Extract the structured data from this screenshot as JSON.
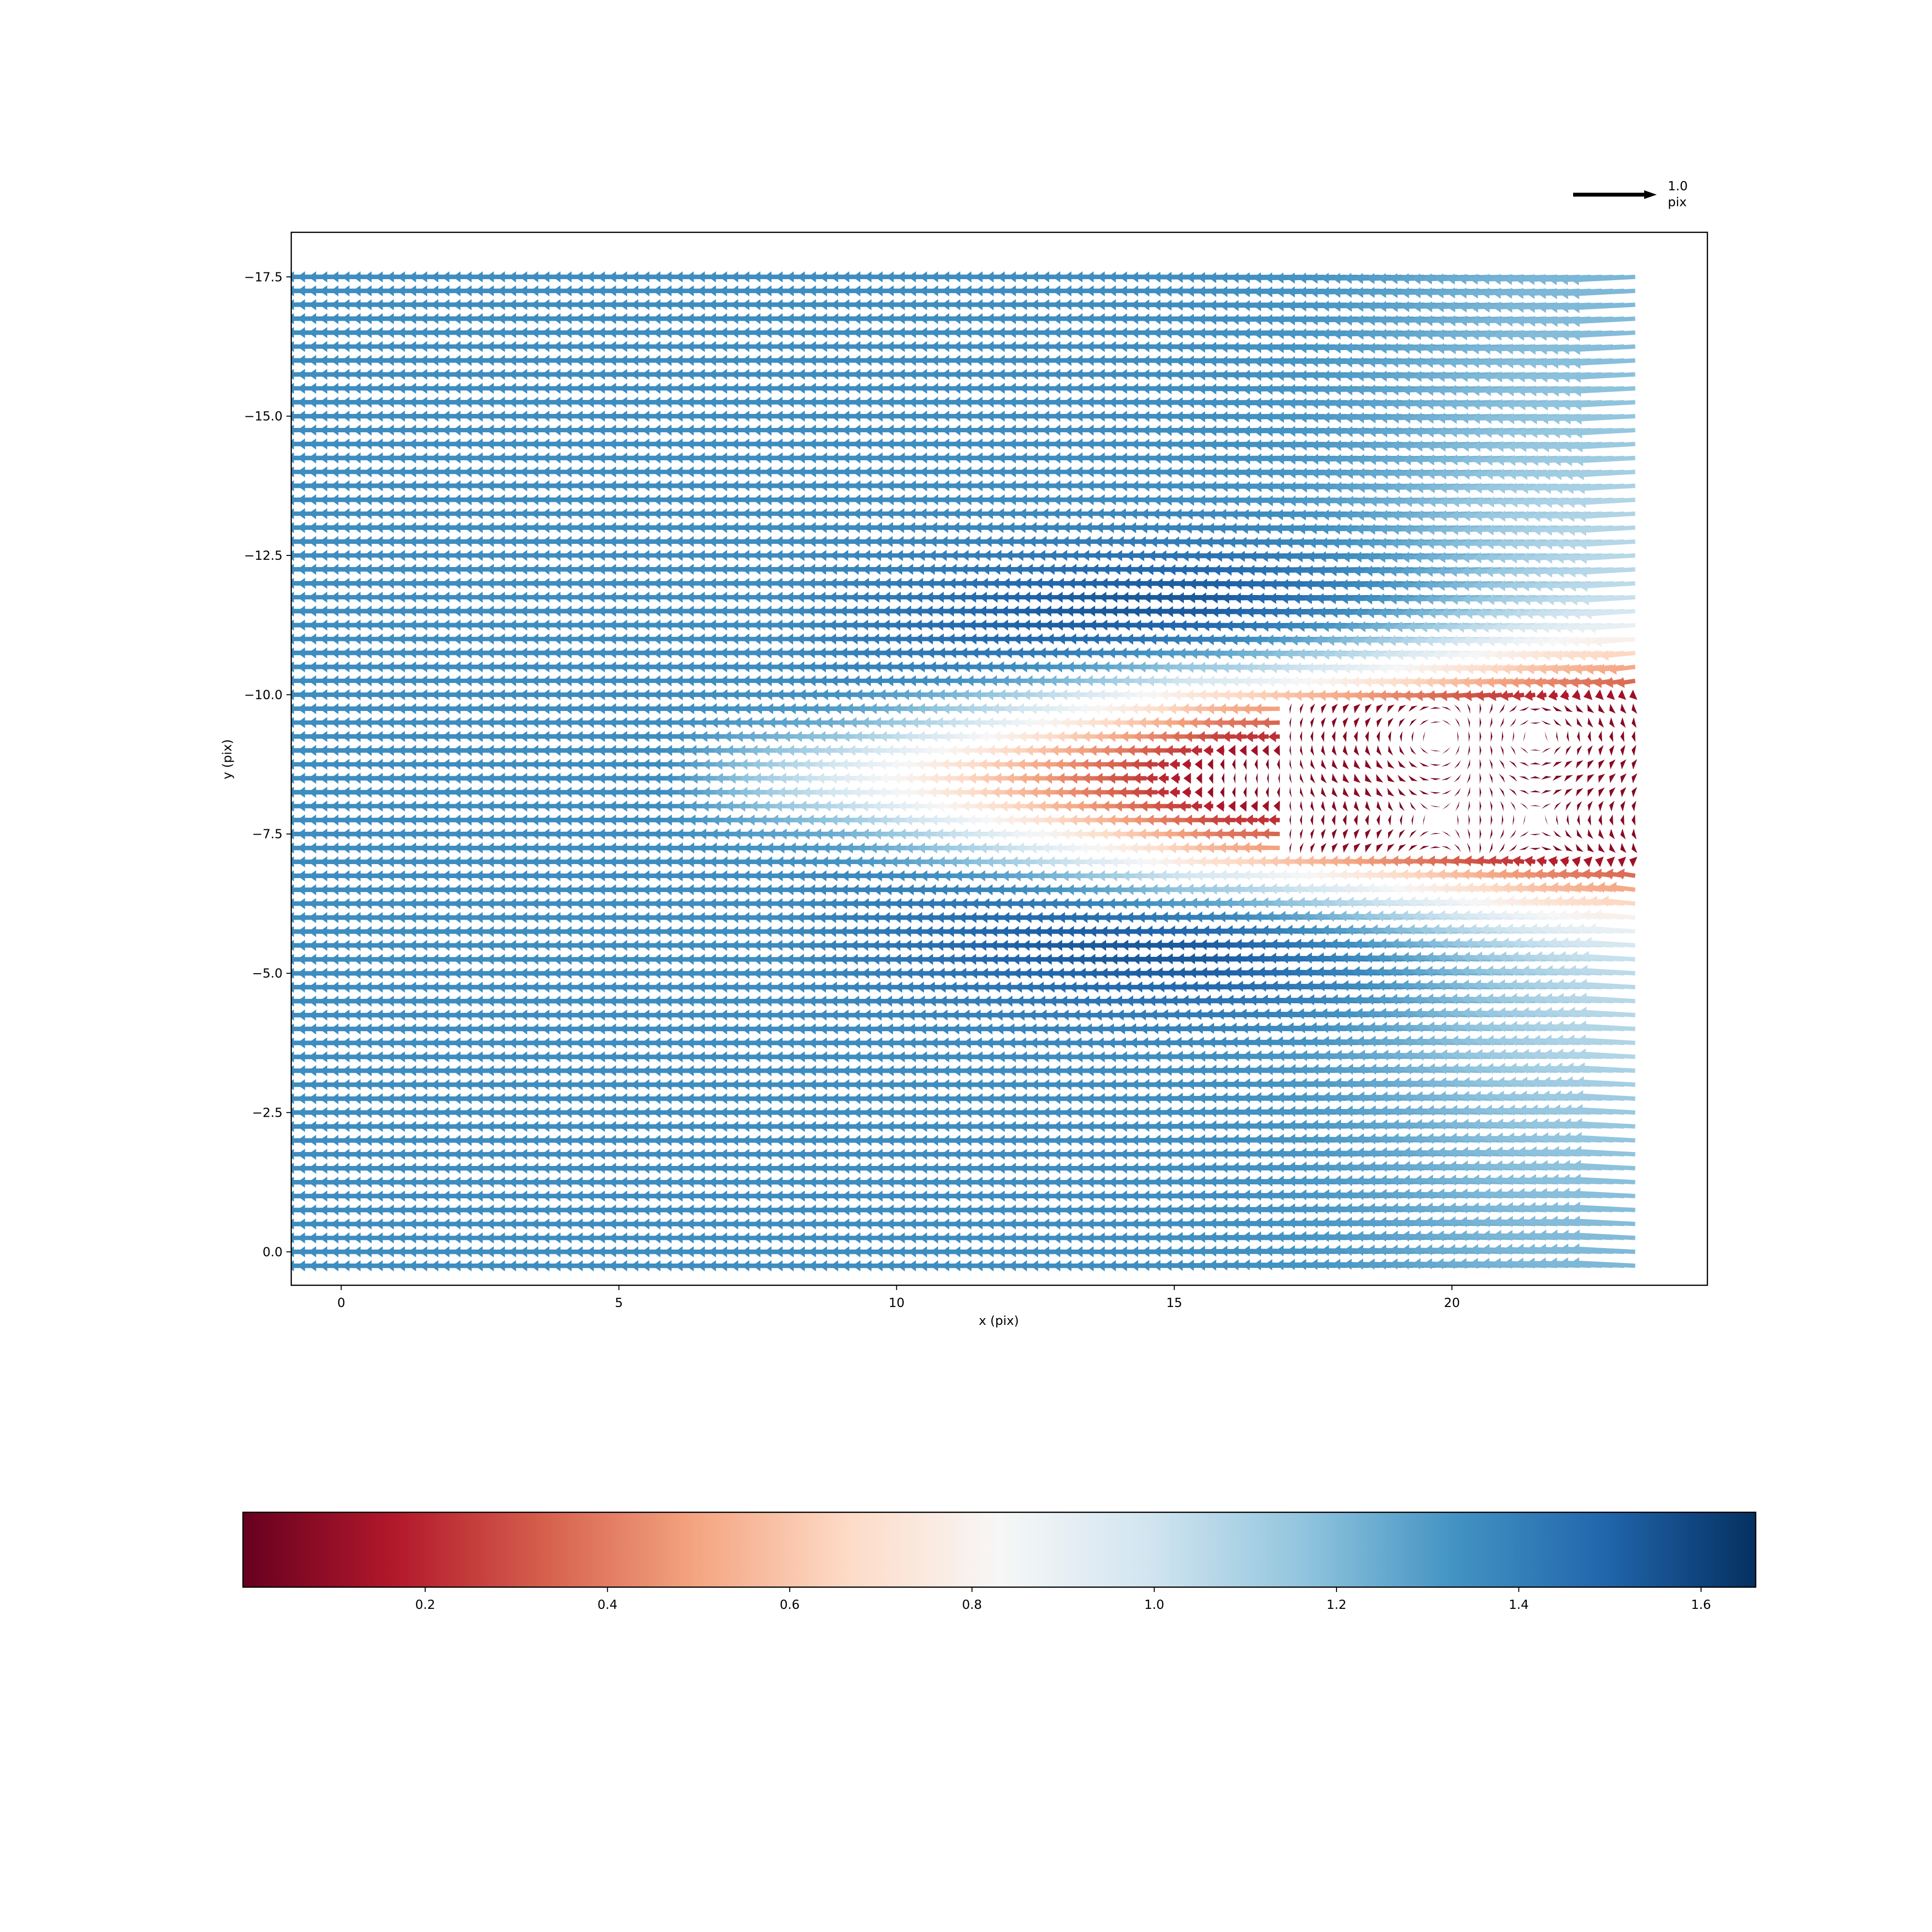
{
  "chart_data": {
    "type": "quiver",
    "xlabel": "x (pix)",
    "ylabel": "y (pix)",
    "xlim": [
      -0.9,
      24.6
    ],
    "ylim": [
      0.6,
      -18.3
    ],
    "y_inverted": true,
    "xticks": [
      0,
      5,
      10,
      15,
      20
    ],
    "yticks": [
      -17.5,
      -15.0,
      -12.5,
      -10.0,
      -7.5,
      -5.0,
      -2.5,
      0.0
    ],
    "field": {
      "x_range": [
        -0.7,
        23.4
      ],
      "y_range": [
        0.25,
        -17.5
      ],
      "grid_spacing": 0.25,
      "direction": "arrows point in -x across the whole field; near-zero vectors in the wake region x 17-23.4, y -7.2 to -9.8",
      "recirculation_zone": {
        "x": [
          17,
          23.4
        ],
        "y": [
          -7.2,
          -9.8
        ]
      }
    },
    "quiverkey": {
      "value": "1.0",
      "unit": "pix"
    },
    "colorbar": {
      "cmap": "RdBu",
      "range": [
        0.0,
        1.66
      ],
      "orientation": "horizontal",
      "ticks": [
        0.2,
        0.4,
        0.6,
        0.8,
        1.0,
        1.2,
        1.4,
        1.6
      ],
      "tick_labels": [
        "0.2",
        "0.4",
        "0.6",
        "0.8",
        "1.0",
        "1.2",
        "1.4",
        "1.6"
      ],
      "colors": [
        "#67001f",
        "#b2182b",
        "#d6604d",
        "#f4a582",
        "#fddbc7",
        "#f7f7f7",
        "#d1e5f0",
        "#92c5de",
        "#4393c3",
        "#2166ac",
        "#053061"
      ]
    }
  }
}
